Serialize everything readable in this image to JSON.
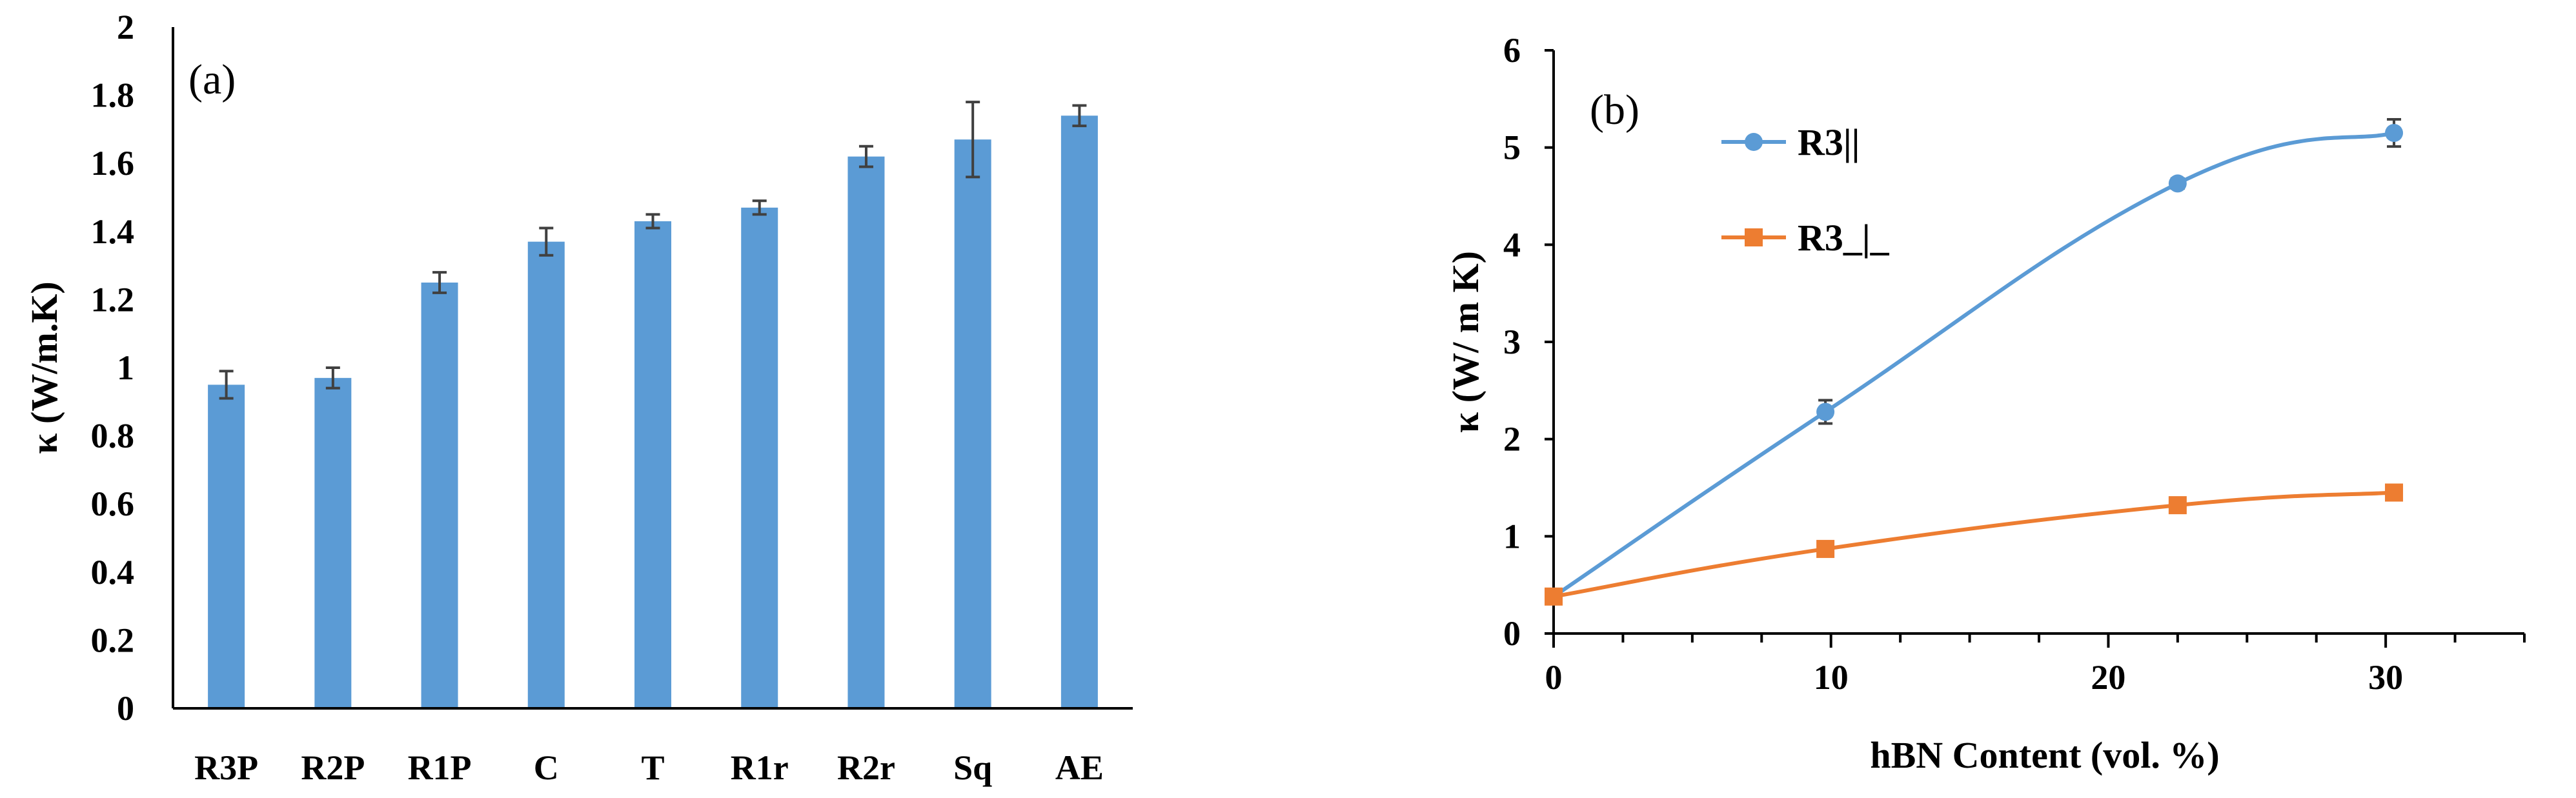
{
  "chart_data": [
    {
      "type": "bar",
      "panel_label": "(a)",
      "title": "",
      "xlabel": "",
      "ylabel": "κ (W/m.K)",
      "categories": [
        "R3P",
        "R2P",
        "R1P",
        "C",
        "T",
        "R1r",
        "R2r",
        "Sq",
        "AE"
      ],
      "values": [
        0.95,
        0.97,
        1.25,
        1.37,
        1.43,
        1.47,
        1.62,
        1.67,
        1.74
      ],
      "errors": [
        0.04,
        0.03,
        0.03,
        0.04,
        0.02,
        0.02,
        0.03,
        0.11,
        0.03
      ],
      "ylim": [
        0,
        2
      ],
      "yticks": [
        "0",
        "0.2",
        "0.4",
        "0.6",
        "0.8",
        "1",
        "1.2",
        "1.4",
        "1.6",
        "1.8",
        "2"
      ],
      "bar_color": "#5b9bd5",
      "grid": false,
      "legend": "none"
    },
    {
      "type": "line",
      "panel_label": "(b)",
      "title": "",
      "xlabel": "hBN Content (vol. %)",
      "ylabel": "κ (W/ m K)",
      "xlim": [
        0,
        35
      ],
      "ylim": [
        0,
        6
      ],
      "xticks": [
        "0",
        "10",
        "20",
        "30"
      ],
      "yticks": [
        "0",
        "1",
        "2",
        "3",
        "4",
        "5",
        "6"
      ],
      "series": [
        {
          "name": "R3||",
          "marker": "circle",
          "color": "#5b9bd5",
          "x": [
            0,
            9.8,
            22.5,
            30.3
          ],
          "y": [
            0.38,
            2.28,
            4.63,
            5.15
          ],
          "errors": [
            0.0,
            0.12,
            0.05,
            0.14
          ]
        },
        {
          "name": "R3_|_",
          "marker": "square",
          "color": "#ed7d31",
          "x": [
            0,
            9.8,
            22.5,
            30.3
          ],
          "y": [
            0.38,
            0.87,
            1.32,
            1.45
          ],
          "errors": [
            0.0,
            0.03,
            0.04,
            0.05
          ]
        }
      ],
      "grid": false,
      "legend": "top-left"
    }
  ]
}
